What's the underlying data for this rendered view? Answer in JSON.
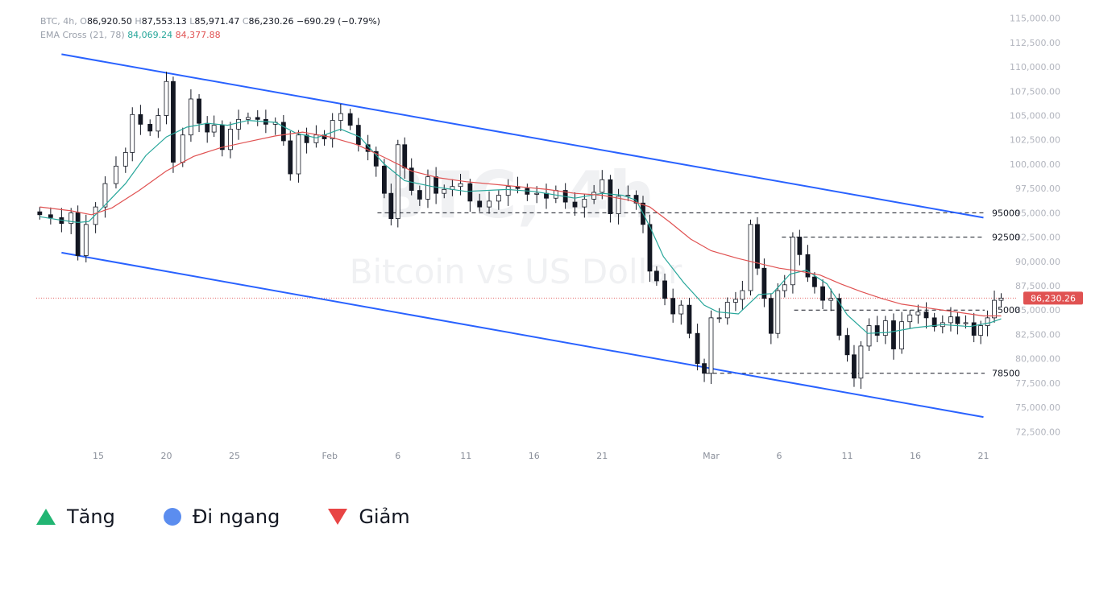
{
  "header": {
    "symbol": "BTC, 4h,",
    "o_label": "O",
    "o_value": "86,920.50",
    "h_label": "H",
    "h_value": "87,553.13",
    "l_label": "L",
    "l_value": "85,971.47",
    "c_label": "C",
    "c_value": "86,230.26",
    "change": "−690.29 (−0.79%)",
    "ema_name": "EMA Cross (21, 78)",
    "ema_short_value": "84,069.24",
    "ema_long_value": "84,377.88"
  },
  "watermark": {
    "line1": "BTC, 4h",
    "line2": "Bitcoin vs US Dollar"
  },
  "legend": [
    {
      "label": "Tăng",
      "icon": "triangle-up-icon",
      "color": "#22b573"
    },
    {
      "label": "Đi ngang",
      "icon": "circle-icon",
      "color": "#5b8def"
    },
    {
      "label": "Giảm",
      "icon": "triangle-down-icon",
      "color": "#e84545"
    }
  ],
  "chart_data": {
    "type": "line",
    "title": "",
    "xlabel": "",
    "ylabel": "",
    "ylim": [
      71500,
      116000
    ],
    "y_ticks": [
      "115,000.00",
      "112,500.00",
      "110,000.00",
      "107,500.00",
      "105,000.00",
      "102,500.00",
      "100,000.00",
      "97,500.00",
      "95,000.00",
      "92,500.00",
      "90,000.00",
      "87,500.00",
      "85,000.00",
      "82,500.00",
      "80,000.00",
      "77,500.00",
      "75,000.00",
      "72,500.00"
    ],
    "x_ticks": [
      {
        "label": "15",
        "day": 15
      },
      {
        "label": "20",
        "day": 20
      },
      {
        "label": "25",
        "day": 25
      },
      {
        "label": "Feb",
        "day": 32
      },
      {
        "label": "6",
        "day": 37
      },
      {
        "label": "11",
        "day": 42
      },
      {
        "label": "16",
        "day": 47
      },
      {
        "label": "21",
        "day": 52
      },
      {
        "label": "Mar",
        "day": 60
      },
      {
        "label": "6",
        "day": 65
      },
      {
        "label": "11",
        "day": 70
      },
      {
        "label": "16",
        "day": 75
      },
      {
        "label": "21",
        "day": 80
      }
    ],
    "x_unit_note": "day index: Jan=1..31, Feb 1 = 32, Mar 1 = 60",
    "last_price": {
      "value": 86230.26,
      "label": "86,230.26",
      "color": "#e05252"
    },
    "levels": [
      {
        "label": "95000",
        "value": 95000,
        "from_day": 35.5
      },
      {
        "label": "92500",
        "value": 92500,
        "from_day": 65.2
      },
      {
        "label": "85000",
        "value": 85000,
        "from_day": 66.1
      },
      {
        "label": "78500",
        "value": 78500,
        "from_day": 59.6
      }
    ],
    "channel": {
      "color": "#2962ff",
      "upper": [
        {
          "day": 12.3,
          "value": 111300
        },
        {
          "day": 80,
          "value": 94500
        }
      ],
      "lower": [
        {
          "day": 12.3,
          "value": 90900
        },
        {
          "day": 80,
          "value": 74000
        }
      ]
    },
    "series": [
      {
        "name": "BTC",
        "style": "candles",
        "points": [
          [
            10.7,
            94800
          ],
          [
            11.5,
            94500
          ],
          [
            12.3,
            93900
          ],
          [
            13.0,
            95000
          ],
          [
            13.5,
            90600
          ],
          [
            14.1,
            93800
          ],
          [
            14.8,
            95600
          ],
          [
            15.5,
            98000
          ],
          [
            16.3,
            99800
          ],
          [
            17.0,
            101200
          ],
          [
            17.5,
            105100
          ],
          [
            18.1,
            104100
          ],
          [
            18.8,
            103400
          ],
          [
            19.4,
            105000
          ],
          [
            20.0,
            108500
          ],
          [
            20.5,
            100200
          ],
          [
            21.2,
            103000
          ],
          [
            21.8,
            106700
          ],
          [
            22.4,
            104200
          ],
          [
            23.0,
            103300
          ],
          [
            23.5,
            104000
          ],
          [
            24.1,
            101500
          ],
          [
            24.7,
            103600
          ],
          [
            25.3,
            104600
          ],
          [
            26.0,
            104800
          ],
          [
            26.7,
            104600
          ],
          [
            27.3,
            104100
          ],
          [
            28.0,
            104300
          ],
          [
            28.6,
            102400
          ],
          [
            29.1,
            99000
          ],
          [
            29.7,
            103000
          ],
          [
            30.3,
            102200
          ],
          [
            31.0,
            103000
          ],
          [
            31.6,
            102600
          ],
          [
            32.2,
            104500
          ],
          [
            32.8,
            105200
          ],
          [
            33.5,
            104000
          ],
          [
            34.1,
            102000
          ],
          [
            34.8,
            101300
          ],
          [
            35.4,
            99800
          ],
          [
            36.0,
            97000
          ],
          [
            36.5,
            94400
          ],
          [
            37.0,
            102000
          ],
          [
            37.5,
            99600
          ],
          [
            38.0,
            97300
          ],
          [
            38.6,
            96400
          ],
          [
            39.2,
            98700
          ],
          [
            39.8,
            97000
          ],
          [
            40.4,
            97400
          ],
          [
            41.0,
            97700
          ],
          [
            41.6,
            98000
          ],
          [
            42.3,
            96200
          ],
          [
            43.0,
            95600
          ],
          [
            43.7,
            96200
          ],
          [
            44.4,
            96800
          ],
          [
            45.1,
            97700
          ],
          [
            45.8,
            97500
          ],
          [
            46.5,
            96900
          ],
          [
            47.2,
            97000
          ],
          [
            47.9,
            96500
          ],
          [
            48.6,
            97300
          ],
          [
            49.3,
            96100
          ],
          [
            50.0,
            95600
          ],
          [
            50.7,
            96400
          ],
          [
            51.4,
            97100
          ],
          [
            52.0,
            98400
          ],
          [
            52.6,
            94900
          ],
          [
            53.2,
            96700
          ],
          [
            53.9,
            96800
          ],
          [
            54.5,
            96000
          ],
          [
            55.0,
            93800
          ],
          [
            55.5,
            89000
          ],
          [
            56.0,
            88000
          ],
          [
            56.6,
            86200
          ],
          [
            57.2,
            84600
          ],
          [
            57.8,
            85500
          ],
          [
            58.4,
            82600
          ],
          [
            59.0,
            79500
          ],
          [
            59.5,
            78500
          ],
          [
            60.0,
            84200
          ],
          [
            60.6,
            84200
          ],
          [
            61.2,
            85800
          ],
          [
            61.8,
            86100
          ],
          [
            62.3,
            87000
          ],
          [
            62.9,
            93800
          ],
          [
            63.4,
            89300
          ],
          [
            63.9,
            86200
          ],
          [
            64.4,
            82600
          ],
          [
            64.9,
            87000
          ],
          [
            65.4,
            87600
          ],
          [
            66.0,
            92500
          ],
          [
            66.5,
            90700
          ],
          [
            67.1,
            88400
          ],
          [
            67.6,
            87400
          ],
          [
            68.2,
            86000
          ],
          [
            68.8,
            86200
          ],
          [
            69.4,
            82400
          ],
          [
            70.0,
            80400
          ],
          [
            70.5,
            78000
          ],
          [
            71.0,
            81300
          ],
          [
            71.6,
            83400
          ],
          [
            72.2,
            82400
          ],
          [
            72.8,
            83900
          ],
          [
            73.4,
            81000
          ],
          [
            74.0,
            83800
          ],
          [
            74.6,
            84500
          ],
          [
            75.2,
            84800
          ],
          [
            75.8,
            84200
          ],
          [
            76.4,
            83300
          ],
          [
            77.0,
            83700
          ],
          [
            77.6,
            84300
          ],
          [
            78.1,
            83600
          ],
          [
            78.7,
            83700
          ],
          [
            79.3,
            82400
          ],
          [
            79.8,
            83400
          ],
          [
            80.3,
            84200
          ],
          [
            80.8,
            86000
          ],
          [
            81.3,
            86230
          ]
        ]
      },
      {
        "name": "EMA 21",
        "style": "line",
        "color": "#26a69a",
        "points": [
          [
            10.7,
            94600
          ],
          [
            12,
            94300
          ],
          [
            13.5,
            94000
          ],
          [
            14.3,
            94100
          ],
          [
            15.5,
            95800
          ],
          [
            17,
            98000
          ],
          [
            18.5,
            100900
          ],
          [
            20,
            102800
          ],
          [
            21.5,
            103800
          ],
          [
            23,
            104200
          ],
          [
            24.5,
            104000
          ],
          [
            26,
            104500
          ],
          [
            28,
            104300
          ],
          [
            29.5,
            103200
          ],
          [
            31,
            102700
          ],
          [
            32.8,
            103600
          ],
          [
            34.2,
            102800
          ],
          [
            36,
            100000
          ],
          [
            37.5,
            98300
          ],
          [
            39.5,
            97700
          ],
          [
            42,
            97200
          ],
          [
            45,
            97400
          ],
          [
            47,
            97200
          ],
          [
            50,
            96500
          ],
          [
            52,
            97000
          ],
          [
            53.5,
            96800
          ],
          [
            54.5,
            96300
          ],
          [
            55.5,
            93600
          ],
          [
            56.5,
            90500
          ],
          [
            58,
            87800
          ],
          [
            59.5,
            85500
          ],
          [
            60.5,
            84800
          ],
          [
            62,
            84600
          ],
          [
            63.5,
            86600
          ],
          [
            64.5,
            86700
          ],
          [
            65.8,
            88700
          ],
          [
            67,
            89100
          ],
          [
            68.5,
            87700
          ],
          [
            70,
            84500
          ],
          [
            71.5,
            82600
          ],
          [
            73,
            82700
          ],
          [
            75,
            83200
          ],
          [
            77,
            83500
          ],
          [
            79,
            83300
          ],
          [
            80.5,
            83700
          ],
          [
            81.3,
            84100
          ]
        ]
      },
      {
        "name": "EMA 78",
        "style": "line",
        "color": "#e05252",
        "points": [
          [
            10.7,
            95600
          ],
          [
            13,
            95200
          ],
          [
            14.5,
            94800
          ],
          [
            16,
            95500
          ],
          [
            18,
            97300
          ],
          [
            20,
            99300
          ],
          [
            22,
            100800
          ],
          [
            24,
            101700
          ],
          [
            26,
            102300
          ],
          [
            28,
            102900
          ],
          [
            30,
            103300
          ],
          [
            32,
            102800
          ],
          [
            34,
            102000
          ],
          [
            36,
            100700
          ],
          [
            38,
            99300
          ],
          [
            40,
            98600
          ],
          [
            42,
            98200
          ],
          [
            45,
            97800
          ],
          [
            48,
            97400
          ],
          [
            50,
            97000
          ],
          [
            52,
            96800
          ],
          [
            54,
            96300
          ],
          [
            55.5,
            95600
          ],
          [
            57,
            94000
          ],
          [
            58.5,
            92300
          ],
          [
            60,
            91100
          ],
          [
            62,
            90300
          ],
          [
            63.5,
            89800
          ],
          [
            65,
            89300
          ],
          [
            66.5,
            89000
          ],
          [
            68,
            88600
          ],
          [
            69.5,
            87700
          ],
          [
            71,
            86900
          ],
          [
            72.5,
            86200
          ],
          [
            74,
            85600
          ],
          [
            76,
            85200
          ],
          [
            78,
            84800
          ],
          [
            80,
            84400
          ],
          [
            81.3,
            84400
          ]
        ]
      }
    ]
  }
}
